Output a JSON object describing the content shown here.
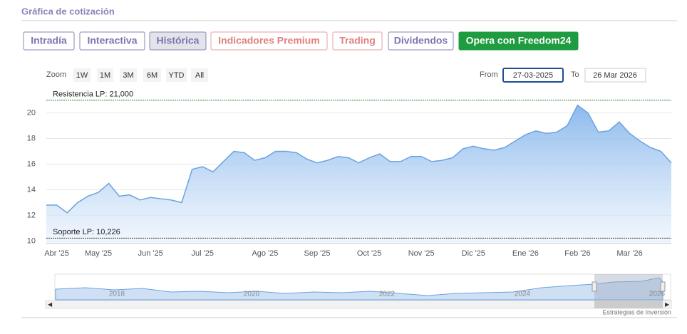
{
  "header": {
    "title": "Gráfica de cotización"
  },
  "tabs": [
    "Intradía",
    "Interactiva",
    "Histórica",
    "Indicadores Premium",
    "Trading",
    "Dividendos",
    "Opera con Freedom24"
  ],
  "zoom": {
    "label": "Zoom",
    "buttons": [
      "1W",
      "1M",
      "3M",
      "6M",
      "YTD",
      "All"
    ]
  },
  "range": {
    "from_label": "From",
    "from": "27-03-2025",
    "to_label": "To",
    "to": "26 Mar 2026"
  },
  "navigator": {
    "years": [
      "2018",
      "2020",
      "2022",
      "2024",
      "2026"
    ]
  },
  "credit": "Estrategias de Inversión",
  "chart_data": {
    "type": "area",
    "categories": [
      null,
      "Abr '25",
      null,
      null,
      null,
      "May '25",
      null,
      null,
      null,
      null,
      "Jun '25",
      null,
      null,
      null,
      null,
      "Jul '25",
      null,
      null,
      null,
      null,
      null,
      "Ago '25",
      null,
      null,
      null,
      null,
      "Sep '25",
      null,
      null,
      null,
      null,
      "Oct '25",
      null,
      null,
      null,
      null,
      "Nov '25",
      null,
      null,
      null,
      null,
      "Dic '25",
      null,
      null,
      null,
      null,
      "Ene '26",
      null,
      null,
      null,
      null,
      "Feb '26",
      null,
      null,
      null,
      null,
      "Mar '26",
      null,
      null,
      null,
      null
    ],
    "values": [
      12.8,
      12.8,
      12.2,
      13.0,
      13.5,
      13.8,
      14.5,
      13.5,
      13.6,
      13.2,
      13.4,
      13.3,
      13.2,
      13.0,
      15.6,
      15.8,
      15.4,
      16.2,
      17.0,
      16.9,
      16.3,
      16.5,
      17.0,
      17.0,
      16.9,
      16.4,
      16.1,
      16.3,
      16.6,
      16.5,
      16.1,
      16.5,
      16.8,
      16.2,
      16.2,
      16.6,
      16.6,
      16.2,
      16.3,
      16.5,
      17.2,
      17.4,
      17.2,
      17.1,
      17.3,
      17.8,
      18.3,
      18.6,
      18.4,
      18.5,
      19.0,
      20.6,
      20.0,
      18.5,
      18.6,
      19.3,
      18.4,
      17.8,
      17.3,
      17.0,
      16.1
    ],
    "color": "#6aa3e0",
    "ylim": [
      9.8,
      21.7
    ],
    "yticks": [
      10,
      12,
      14,
      16,
      18,
      20
    ],
    "grid": true,
    "annotations": [
      {
        "label": "Resistencia LP: 21,000",
        "value": 21
      },
      {
        "label": "Soporte LP: 10,226",
        "value": 10.226
      }
    ]
  }
}
